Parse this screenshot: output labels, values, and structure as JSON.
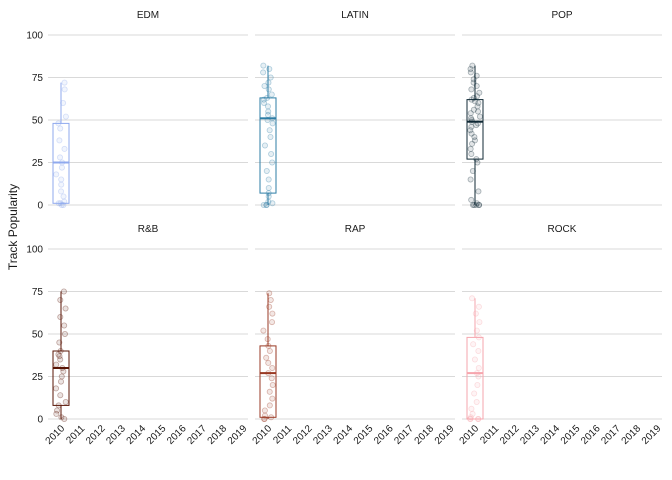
{
  "chart_data": {
    "type": "box",
    "ylabel": "Track Popularity",
    "xlabel": "",
    "ylim": [
      0,
      100
    ],
    "yticks": [
      0,
      25,
      50,
      75,
      100
    ],
    "x_categories": [
      "2010",
      "2011",
      "2012",
      "2013",
      "2014",
      "2015",
      "2016",
      "2017",
      "2018",
      "2019"
    ],
    "grid": "horizontal",
    "facets": [
      {
        "name": "EDM",
        "color": "#8fa9ee",
        "box": {
          "x": "2010",
          "min": 0,
          "q1": 1,
          "median": 25,
          "q3": 48,
          "max": 72
        },
        "points": [
          0,
          0,
          1,
          1,
          2,
          5,
          8,
          12,
          15,
          18,
          22,
          25,
          28,
          33,
          38,
          45,
          48,
          52,
          60,
          68,
          72
        ]
      },
      {
        "name": "LATIN",
        "color": "#2e7ea6",
        "box": {
          "x": "2010",
          "min": 0,
          "q1": 7,
          "median": 51,
          "q3": 63,
          "max": 82
        },
        "points": [
          0,
          0,
          0,
          1,
          2,
          5,
          7,
          10,
          15,
          20,
          25,
          30,
          35,
          40,
          44,
          48,
          50,
          51,
          53,
          55,
          58,
          60,
          62,
          63,
          65,
          68,
          70,
          72,
          75,
          78,
          80,
          82
        ]
      },
      {
        "name": "POP",
        "color": "#102a36",
        "box": {
          "x": "2010",
          "min": 0,
          "q1": 27,
          "median": 49,
          "q3": 62,
          "max": 82
        },
        "points": [
          0,
          0,
          0,
          0,
          0,
          1,
          3,
          8,
          15,
          20,
          25,
          27,
          30,
          33,
          36,
          38,
          40,
          42,
          44,
          46,
          47,
          48,
          49,
          50,
          51,
          52,
          54,
          55,
          56,
          58,
          60,
          61,
          62,
          63,
          64,
          66,
          68,
          70,
          72,
          74,
          76,
          78,
          80,
          82
        ]
      },
      {
        "name": "R&B",
        "color": "#5a1505",
        "box": {
          "x": "2010",
          "min": 0,
          "q1": 8,
          "median": 30,
          "q3": 40,
          "max": 75
        },
        "points": [
          0,
          1,
          3,
          5,
          8,
          10,
          14,
          18,
          22,
          25,
          28,
          30,
          32,
          35,
          37,
          38,
          40,
          45,
          50,
          55,
          60,
          65,
          70,
          75
        ]
      },
      {
        "name": "RAP",
        "color": "#9a3a24",
        "box": {
          "x": "2010",
          "min": 0,
          "q1": 1,
          "median": 27,
          "q3": 43,
          "max": 74
        },
        "points": [
          0,
          0,
          1,
          2,
          5,
          8,
          12,
          16,
          20,
          24,
          27,
          30,
          33,
          36,
          40,
          43,
          47,
          52,
          57,
          62,
          66,
          70,
          74
        ]
      },
      {
        "name": "ROCK",
        "color": "#f6a5ad",
        "box": {
          "x": "2010",
          "min": 0,
          "q1": 0,
          "median": 27,
          "q3": 48,
          "max": 71
        },
        "points": [
          0,
          0,
          0,
          0,
          1,
          3,
          6,
          10,
          15,
          20,
          25,
          27,
          30,
          35,
          40,
          44,
          48,
          52,
          57,
          62,
          66,
          71
        ]
      }
    ]
  }
}
